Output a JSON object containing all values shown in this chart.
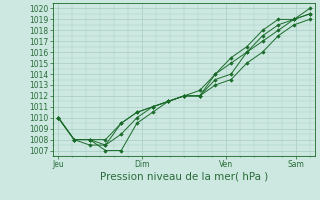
{
  "background_color": "#cce8e0",
  "grid_color": "#a8ccc4",
  "line_color": "#1a6b2a",
  "text_color": "#2a6b3a",
  "xlabel_text": "Pression niveau de la mer( hPa )",
  "ylim": [
    1006.5,
    1020.5
  ],
  "yticks": [
    1007,
    1008,
    1009,
    1010,
    1011,
    1012,
    1013,
    1014,
    1015,
    1016,
    1017,
    1018,
    1019,
    1020
  ],
  "xtick_labels": [
    "Jeu",
    "Dim",
    "Ven",
    "Sam"
  ],
  "xtick_positions": [
    0.0,
    3.0,
    6.0,
    8.5
  ],
  "xlim": [
    -0.2,
    9.2
  ],
  "series": [
    [
      1010.0,
      1008.0,
      1008.0,
      1007.0,
      1007.0,
      1009.5,
      1010.5,
      1011.5,
      1012.0,
      1012.5,
      1014.0,
      1015.5,
      1016.5,
      1018.0,
      1019.0,
      1019.0,
      1020.0
    ],
    [
      1010.0,
      1008.0,
      1007.5,
      1007.5,
      1009.5,
      1010.5,
      1011.0,
      1011.5,
      1012.0,
      1012.0,
      1013.5,
      1014.0,
      1016.0,
      1017.0,
      1018.0,
      1019.0,
      1019.5
    ],
    [
      1010.0,
      1008.0,
      1008.0,
      1007.5,
      1008.5,
      1010.0,
      1011.0,
      1011.5,
      1012.0,
      1012.0,
      1013.0,
      1013.5,
      1015.0,
      1016.0,
      1017.5,
      1018.5,
      1019.0
    ],
    [
      1010.0,
      1008.0,
      1008.0,
      1008.0,
      1009.5,
      1010.5,
      1011.0,
      1011.5,
      1012.0,
      1012.0,
      1014.0,
      1015.0,
      1016.0,
      1017.5,
      1018.5,
      1019.0,
      1019.5
    ]
  ],
  "marker": "D",
  "marker_size": 1.8,
  "line_width": 0.7,
  "tick_font_size": 5.5,
  "xlabel_font_size": 7.5
}
